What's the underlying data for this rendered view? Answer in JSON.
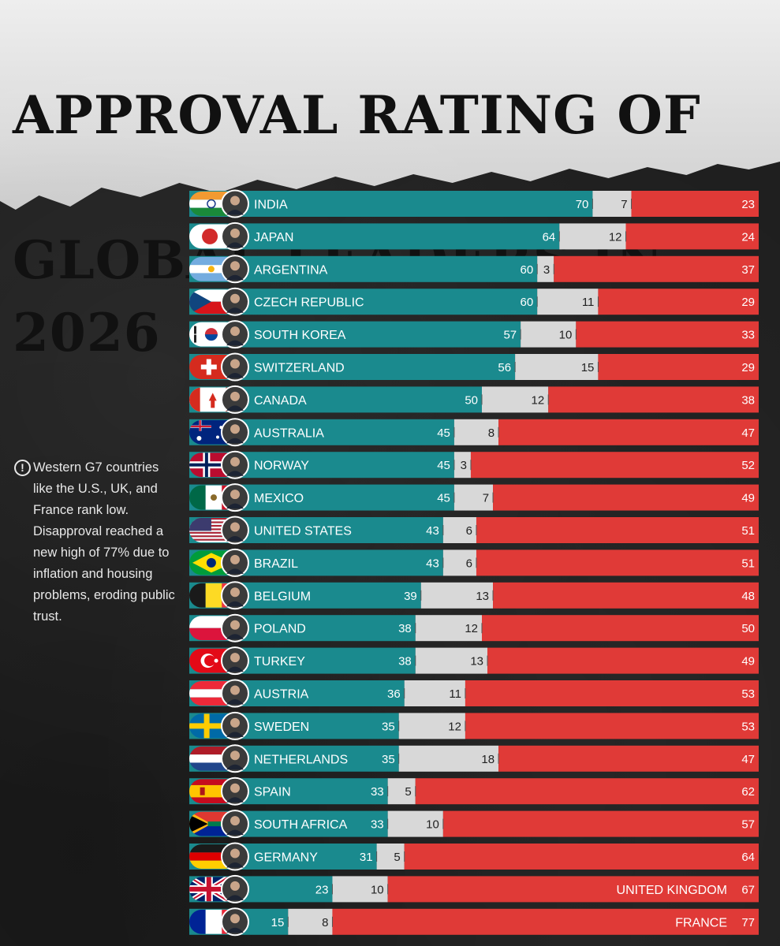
{
  "title_line1": "APPROVAL RATING OF",
  "title_line2": "GLOBAL LEADERS IN 2026",
  "note": {
    "icon": "exclamation-icon",
    "text": "Western G7 countries like the U.S., UK, and France rank low. Disapproval reached a new high of 77% due to inflation and housing problems, eroding public trust."
  },
  "colors": {
    "approve": "#1a8a8e",
    "neutral": "#d8d8d8",
    "disapprove": "#e03a37"
  },
  "chart_data": {
    "type": "bar",
    "stacked": true,
    "orientation": "horizontal",
    "xlim": [
      0,
      100
    ],
    "categories": [
      "INDIA",
      "JAPAN",
      "ARGENTINA",
      "CZECH REPUBLIC",
      "SOUTH KOREA",
      "SWITZERLAND",
      "CANADA",
      "AUSTRALIA",
      "NORWAY",
      "MEXICO",
      "UNITED STATES",
      "BRAZIL",
      "BELGIUM",
      "POLAND",
      "TURKEY",
      "AUSTRIA",
      "SWEDEN",
      "NETHERLANDS",
      "SPAIN",
      "SOUTH AFRICA",
      "GERMANY",
      "UNITED KINGDOM",
      "FRANCE"
    ],
    "series": [
      {
        "values": [
          70,
          64,
          60,
          60,
          57,
          56,
          50,
          45,
          45,
          45,
          43,
          43,
          39,
          38,
          38,
          36,
          35,
          35,
          33,
          33,
          31,
          23,
          15
        ]
      },
      {
        "values": [
          7,
          12,
          3,
          11,
          10,
          15,
          12,
          8,
          3,
          7,
          6,
          6,
          13,
          12,
          13,
          11,
          12,
          18,
          5,
          10,
          5,
          10,
          8
        ]
      },
      {
        "values": [
          23,
          24,
          37,
          29,
          33,
          29,
          38,
          47,
          52,
          49,
          51,
          51,
          48,
          50,
          49,
          53,
          53,
          47,
          62,
          57,
          64,
          67,
          77
        ]
      }
    ],
    "label_position": [
      "inside-approve",
      "inside-approve",
      "inside-approve",
      "inside-approve",
      "inside-approve",
      "inside-approve",
      "inside-approve",
      "inside-approve",
      "inside-approve",
      "inside-approve",
      "inside-approve",
      "inside-approve",
      "inside-approve",
      "inside-approve",
      "inside-approve",
      "inside-approve",
      "inside-approve",
      "inside-approve",
      "inside-approve",
      "inside-approve",
      "inside-approve",
      "inside-disapprove",
      "inside-disapprove"
    ],
    "flags": [
      "india-flag",
      "japan-flag",
      "argentina-flag",
      "czech-flag",
      "south-korea-flag",
      "switzerland-flag",
      "canada-flag",
      "australia-flag",
      "norway-flag",
      "mexico-flag",
      "usa-flag",
      "brazil-flag",
      "belgium-flag",
      "poland-flag",
      "turkey-flag",
      "austria-flag",
      "sweden-flag",
      "netherlands-flag",
      "spain-flag",
      "south-africa-flag",
      "germany-flag",
      "uk-flag",
      "france-flag"
    ]
  }
}
